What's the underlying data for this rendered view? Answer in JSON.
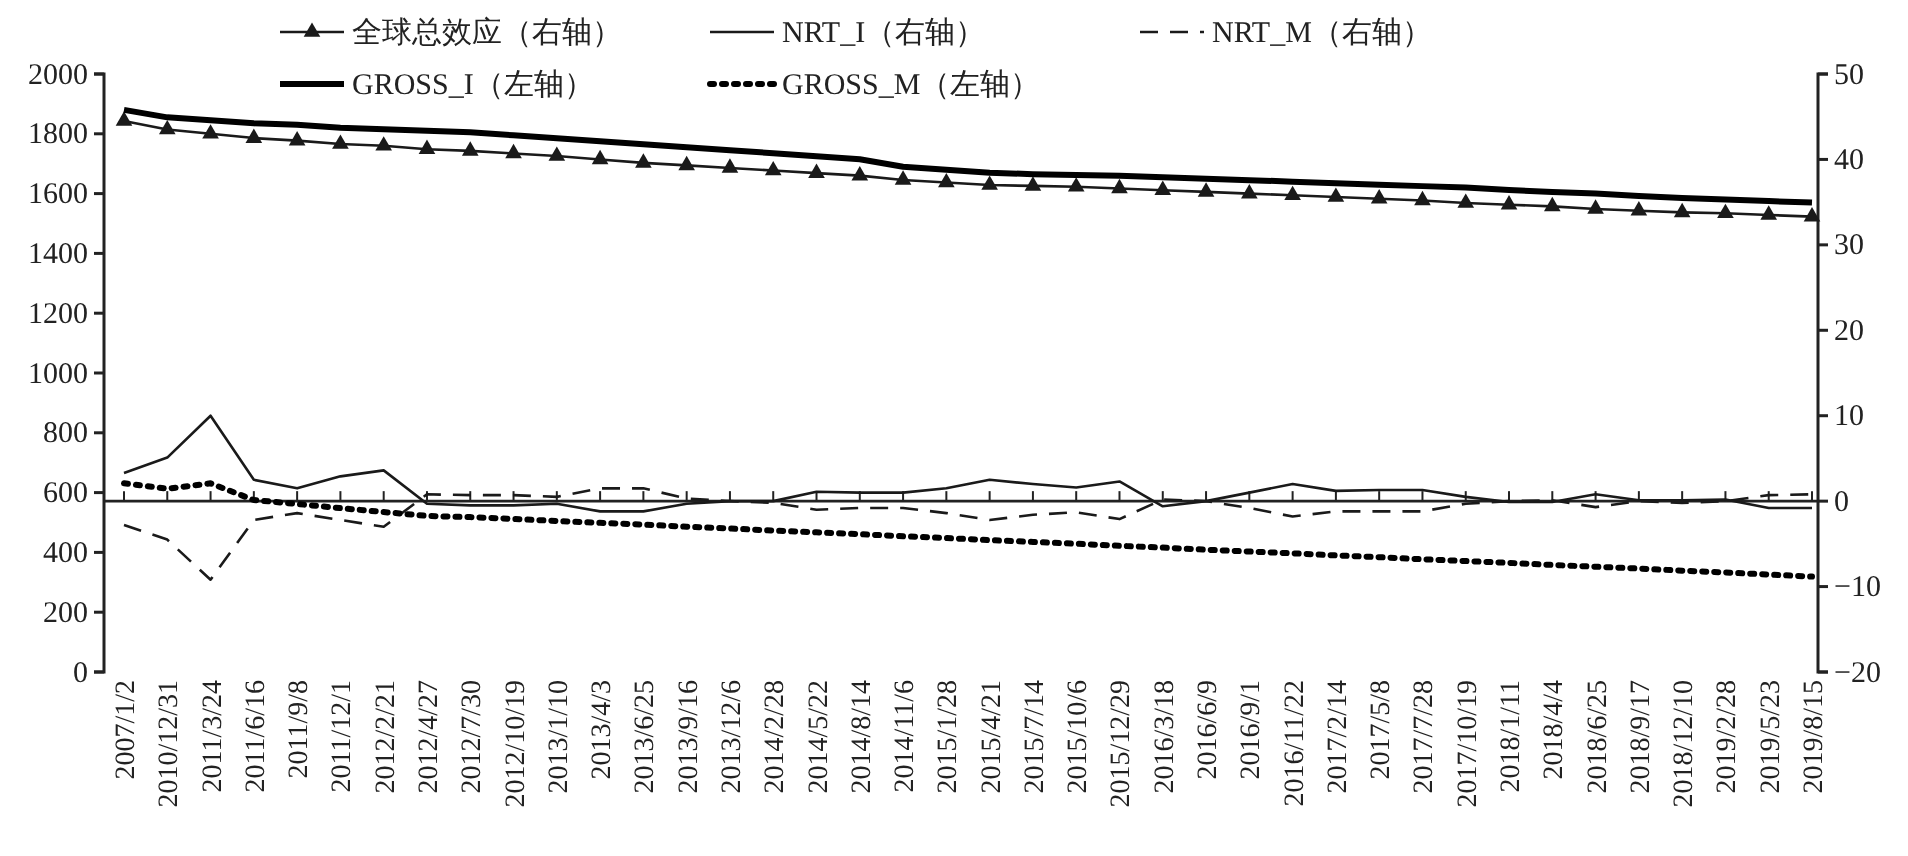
{
  "chart_data": {
    "type": "line",
    "categories": [
      "2007/1/2",
      "2010/12/31",
      "2011/3/24",
      "2011/6/16",
      "2011/9/8",
      "2011/12/1",
      "2012/2/21",
      "2012/4/27",
      "2012/7/30",
      "2012/10/19",
      "2013/1/10",
      "2013/4/3",
      "2013/6/25",
      "2013/9/16",
      "2013/12/6",
      "2014/2/28",
      "2014/5/22",
      "2014/8/14",
      "2014/11/6",
      "2015/1/28",
      "2015/4/21",
      "2015/7/14",
      "2015/10/6",
      "2015/12/29",
      "2016/3/18",
      "2016/6/9",
      "2016/9/1",
      "2016/11/22",
      "2017/2/14",
      "2017/5/8",
      "2017/7/28",
      "2017/10/19",
      "2018/1/11",
      "2018/4/4",
      "2018/6/25",
      "2018/9/17",
      "2018/12/10",
      "2019/2/28",
      "2019/5/23",
      "2019/8/15"
    ],
    "series": [
      {
        "name": "全球总效应（右轴）",
        "color": "#1a1a1a",
        "axis": "y2",
        "marker": "triangle",
        "line_style": "solid",
        "values": [
          44.5,
          43.5,
          43,
          42.5,
          42.2,
          41.8,
          41.6,
          41.2,
          41,
          40.7,
          40.4,
          40,
          39.6,
          39.3,
          39,
          38.7,
          38.4,
          38.1,
          37.6,
          37.3,
          37,
          36.9,
          36.8,
          36.6,
          36.4,
          36.2,
          36,
          35.8,
          35.6,
          35.4,
          35.2,
          34.9,
          34.7,
          34.5,
          34.2,
          34,
          33.8,
          33.7,
          33.5,
          33.3
        ]
      },
      {
        "name": "NRT_I（右轴）",
        "color": "#1a1a1a",
        "axis": "y2",
        "marker": "none",
        "line_style": "solid",
        "values": [
          3.3,
          5.1,
          10,
          2.5,
          1.5,
          2.9,
          3.6,
          -0.3,
          -0.5,
          -0.5,
          -0.3,
          -1.2,
          -1.2,
          -0.3,
          0,
          0,
          1.1,
          1,
          1,
          1.5,
          2.5,
          2,
          1.6,
          2.3,
          -0.6,
          0,
          1,
          2,
          1.2,
          1.3,
          1.3,
          0.5,
          -0.1,
          -0.1,
          0.8,
          0.1,
          0.1,
          0.2,
          -0.8,
          -0.8
        ]
      },
      {
        "name": "NRT_M（右轴）",
        "color": "#1a1a1a",
        "axis": "y2",
        "marker": "none",
        "line_style": "dashed",
        "values": [
          -2.8,
          -4.5,
          -9.2,
          -2.2,
          -1.4,
          -2.2,
          -3,
          0.8,
          0.7,
          0.7,
          0.5,
          1.5,
          1.5,
          0.3,
          0,
          -0.2,
          -1,
          -0.8,
          -0.8,
          -1.4,
          -2.2,
          -1.6,
          -1.3,
          -2.1,
          0.2,
          0,
          -0.8,
          -1.8,
          -1.2,
          -1.2,
          -1.2,
          -0.3,
          0,
          0.1,
          -0.7,
          0,
          -0.2,
          0,
          0.7,
          0.8
        ]
      },
      {
        "name": "GROSS_I（左轴）",
        "color": "#000000",
        "axis": "y",
        "marker": "none",
        "line_style": "solid",
        "values": [
          1880,
          1855,
          1845,
          1835,
          1830,
          1820,
          1815,
          1810,
          1805,
          1795,
          1785,
          1775,
          1765,
          1755,
          1745,
          1735,
          1725,
          1715,
          1690,
          1680,
          1670,
          1665,
          1662,
          1660,
          1655,
          1650,
          1645,
          1640,
          1635,
          1630,
          1625,
          1620,
          1612,
          1605,
          1600,
          1592,
          1585,
          1580,
          1575,
          1570
        ]
      },
      {
        "name": "GROSS_M（左轴）",
        "color": "#000000",
        "axis": "y",
        "marker": "none",
        "line_style": "dotted",
        "values": [
          631,
          613,
          631,
          575,
          562,
          548,
          535,
          522,
          518,
          512,
          505,
          499,
          493,
          486,
          480,
          473,
          467,
          461,
          454,
          448,
          441,
          435,
          429,
          422,
          416,
          409,
          403,
          397,
          390,
          384,
          377,
          371,
          365,
          358,
          352,
          346,
          339,
          333,
          326,
          319
        ]
      }
    ],
    "ylim": [
      0,
      2000
    ],
    "yticks": [
      0,
      200,
      400,
      600,
      800,
      1000,
      1200,
      1400,
      1600,
      1800,
      2000
    ],
    "y2lim": [
      -20,
      50
    ],
    "y2ticks": [
      -20,
      -10,
      0,
      10,
      20,
      30,
      40,
      50
    ],
    "legend": "top"
  }
}
